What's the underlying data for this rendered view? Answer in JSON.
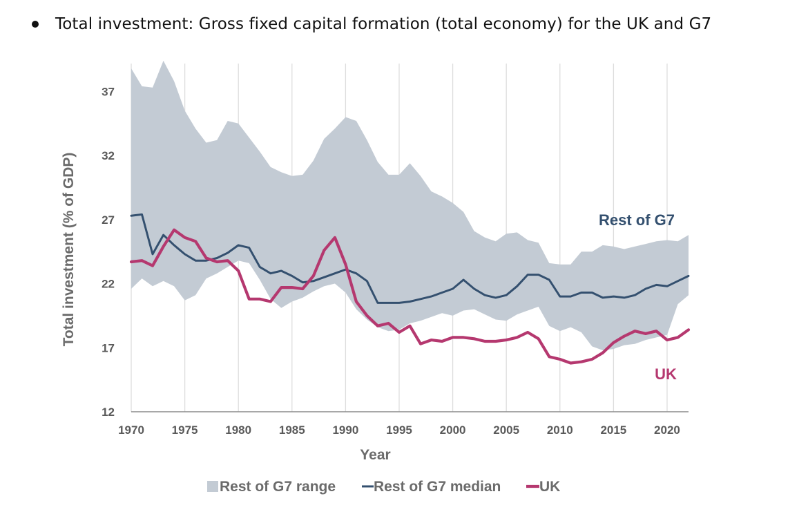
{
  "bullet_text": "Total investment: Gross fixed capital formation (total economy) for the UK and G7",
  "colors": {
    "range": "#c3cbd4",
    "median": "#34506f",
    "uk": "#b5386f",
    "grid": "#dddddd",
    "axis": "#8c8c8c"
  },
  "chart_data": {
    "type": "line",
    "title": "",
    "xlabel": "Year",
    "ylabel": "Total investment (% of GDP)",
    "xlim": [
      1970,
      2022
    ],
    "ylim": [
      12,
      39.5
    ],
    "x_ticks": [
      1970,
      1975,
      1980,
      1985,
      1990,
      1995,
      2000,
      2005,
      2010,
      2015,
      2020
    ],
    "y_ticks": [
      12,
      17,
      22,
      27,
      32,
      37
    ],
    "x": [
      1970,
      1971,
      1972,
      1973,
      1974,
      1975,
      1976,
      1977,
      1978,
      1979,
      1980,
      1981,
      1982,
      1983,
      1984,
      1985,
      1986,
      1987,
      1988,
      1989,
      1990,
      1991,
      1992,
      1993,
      1994,
      1995,
      1996,
      1997,
      1998,
      1999,
      2000,
      2001,
      2002,
      2003,
      2004,
      2005,
      2006,
      2007,
      2008,
      2009,
      2010,
      2011,
      2012,
      2013,
      2014,
      2015,
      2016,
      2017,
      2018,
      2019,
      2020,
      2021,
      2022
    ],
    "series": [
      {
        "name": "Rest of G7 range",
        "kind": "band",
        "upper": [
          38.8,
          37.4,
          37.3,
          39.4,
          37.8,
          35.5,
          34.1,
          33.0,
          33.2,
          34.7,
          34.5,
          33.4,
          32.3,
          31.1,
          30.7,
          30.4,
          30.5,
          31.6,
          33.3,
          34.1,
          35.0,
          34.7,
          33.2,
          31.5,
          30.5,
          30.5,
          31.4,
          30.4,
          29.2,
          28.8,
          28.3,
          27.6,
          26.1,
          25.6,
          25.3,
          25.9,
          26.0,
          25.4,
          25.2,
          23.6,
          23.5,
          23.5,
          24.5,
          24.5,
          25.0,
          24.9,
          24.7,
          24.9,
          25.1,
          25.3,
          25.4,
          25.3,
          25.8
        ],
        "lower": [
          21.6,
          22.4,
          21.8,
          22.2,
          21.8,
          20.7,
          21.1,
          22.4,
          22.8,
          23.3,
          23.8,
          23.6,
          22.3,
          20.8,
          20.1,
          20.6,
          20.9,
          21.4,
          21.8,
          22.0,
          21.3,
          20.0,
          19.2,
          18.6,
          18.3,
          18.4,
          18.9,
          19.1,
          19.4,
          19.7,
          19.5,
          19.9,
          20.0,
          19.6,
          19.2,
          19.1,
          19.6,
          19.9,
          20.2,
          18.7,
          18.3,
          18.6,
          18.2,
          17.1,
          16.8,
          16.9,
          17.2,
          17.3,
          17.6,
          17.8,
          18.0,
          20.4,
          21.1
        ]
      },
      {
        "name": "Rest of G7 median",
        "kind": "line",
        "values": [
          27.3,
          27.4,
          24.3,
          25.8,
          25.0,
          24.3,
          23.8,
          23.8,
          24.0,
          24.4,
          25.0,
          24.8,
          23.3,
          22.8,
          23.0,
          22.6,
          22.1,
          22.2,
          22.5,
          22.8,
          23.1,
          22.8,
          22.2,
          20.5,
          20.5,
          20.5,
          20.6,
          20.8,
          21.0,
          21.3,
          21.6,
          22.3,
          21.6,
          21.1,
          20.9,
          21.1,
          21.8,
          22.7,
          22.7,
          22.3,
          21.0,
          21.0,
          21.3,
          21.3,
          20.9,
          21.0,
          20.9,
          21.1,
          21.6,
          21.9,
          21.8,
          22.2,
          22.6
        ]
      },
      {
        "name": "UK",
        "kind": "line",
        "values": [
          23.7,
          23.8,
          23.4,
          24.9,
          26.2,
          25.6,
          25.3,
          24.0,
          23.7,
          23.8,
          23.0,
          20.8,
          20.8,
          20.6,
          21.7,
          21.7,
          21.6,
          22.6,
          24.6,
          25.6,
          23.5,
          20.6,
          19.5,
          18.7,
          18.9,
          18.2,
          18.7,
          17.3,
          17.6,
          17.5,
          17.8,
          17.8,
          17.7,
          17.5,
          17.5,
          17.6,
          17.8,
          18.2,
          17.7,
          16.3,
          16.1,
          15.8,
          15.9,
          16.1,
          16.6,
          17.4,
          17.9,
          18.3,
          18.1,
          18.3,
          17.6,
          17.8,
          18.4
        ]
      }
    ],
    "annotations": {
      "rest_of_g7": "Rest of G7",
      "uk": "UK"
    },
    "legend": {
      "position": "bottom",
      "items": [
        "Rest of G7 range",
        "Rest of G7 median",
        "UK"
      ]
    }
  }
}
